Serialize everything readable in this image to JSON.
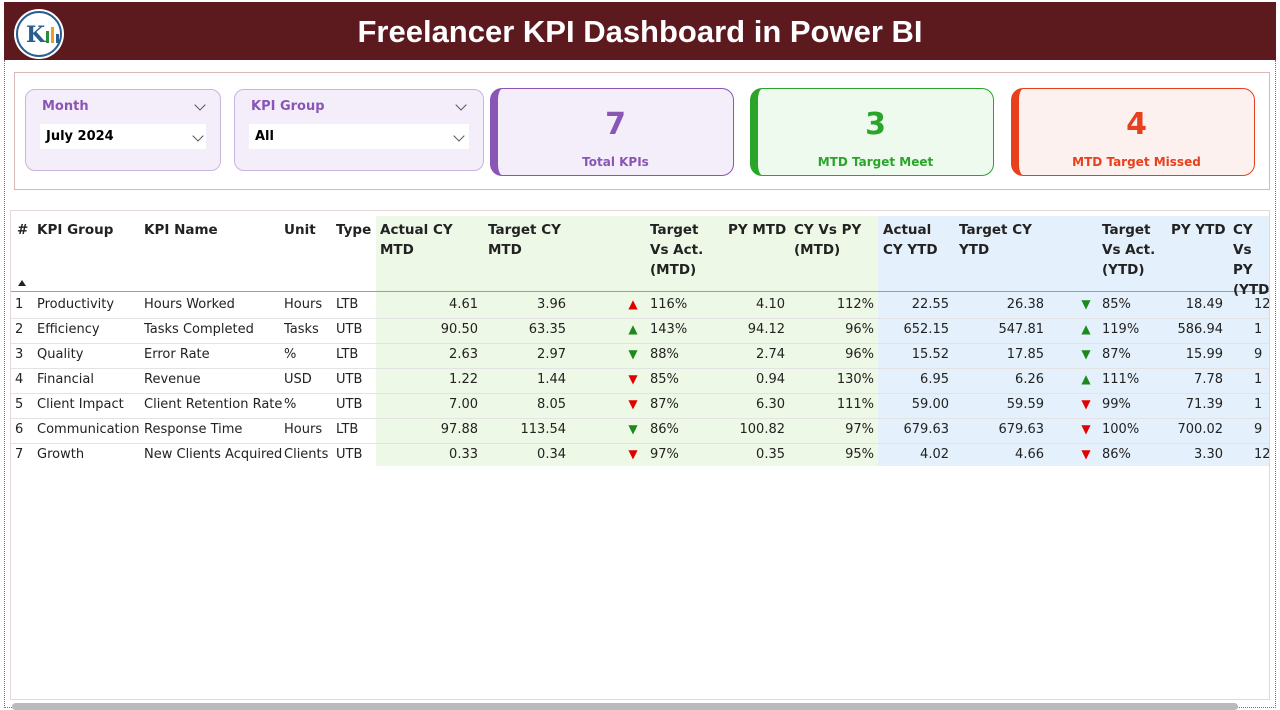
{
  "header": {
    "title": "Freelancer KPI Dashboard in Power BI"
  },
  "slicers": [
    {
      "label": "Month",
      "value": "July 2024"
    },
    {
      "label": "KPI Group",
      "value": "All"
    }
  ],
  "cards": [
    {
      "value": "7",
      "label": "Total KPIs",
      "color": "#8a56b5"
    },
    {
      "value": "3",
      "label": "MTD Target Meet",
      "color": "#2aa52a"
    },
    {
      "value": "4",
      "label": "MTD Target Missed",
      "color": "#e8401c"
    }
  ],
  "table": {
    "columns": [
      "#",
      "KPI Group",
      "KPI Name",
      "Unit",
      "Type",
      "Actual CY MTD",
      "Target CY MTD",
      null,
      "Target Vs Act. (MTD)",
      "PY MTD",
      "CY Vs PY (MTD)",
      "Actual CY YTD",
      "Target CY YTD",
      null,
      "Target Vs Act. (YTD)",
      "PY YTD",
      "CY Vs PY (YTD)"
    ],
    "rows": [
      [
        "1",
        "Productivity",
        "Hours Worked",
        "Hours",
        "LTB",
        "4.61",
        "3.96",
        "▲",
        "116%",
        "4.10",
        "112%",
        "22.55",
        "26.38",
        "▼",
        "85%",
        "18.49",
        "12"
      ],
      [
        "2",
        "Efficiency",
        "Tasks Completed",
        "Tasks",
        "UTB",
        "90.50",
        "63.35",
        "▲",
        "143%",
        "94.12",
        "96%",
        "652.15",
        "547.81",
        "▲",
        "119%",
        "586.94",
        "1"
      ],
      [
        "3",
        "Quality",
        "Error Rate",
        "%",
        "LTB",
        "2.63",
        "2.97",
        "▼",
        "88%",
        "2.74",
        "96%",
        "15.52",
        "17.85",
        "▼",
        "87%",
        "15.99",
        "9"
      ],
      [
        "4",
        "Financial",
        "Revenue",
        "USD",
        "UTB",
        "1.22",
        "1.44",
        "▼",
        "85%",
        "0.94",
        "130%",
        "6.95",
        "6.26",
        "▲",
        "111%",
        "7.78",
        "1"
      ],
      [
        "5",
        "Client Impact",
        "Client Retention Rate",
        "%",
        "UTB",
        "7.00",
        "8.05",
        "▼",
        "87%",
        "6.30",
        "111%",
        "59.00",
        "59.59",
        "▼",
        "99%",
        "71.39",
        "1"
      ],
      [
        "6",
        "Communication",
        "Response Time",
        "Hours",
        "LTB",
        "97.88",
        "113.54",
        "▼",
        "86%",
        "100.82",
        "97%",
        "679.63",
        "679.63",
        "▼",
        "100%",
        "700.02",
        "9"
      ],
      [
        "7",
        "Growth",
        "New Clients Acquired",
        "Clients",
        "UTB",
        "0.33",
        "0.34",
        "▼",
        "97%",
        "0.35",
        "95%",
        "4.02",
        "4.66",
        "▼",
        "86%",
        "3.30",
        "12"
      ]
    ],
    "icon_colors": [
      [
        "#e00000",
        "#1a8a1a"
      ],
      [
        "#1a8a1a",
        "#1a8a1a"
      ],
      [
        "#1a8a1a",
        "#1a8a1a"
      ],
      [
        "#e00000",
        "#1a8a1a"
      ],
      [
        "#e00000",
        "#e00000"
      ],
      [
        "#1a8a1a",
        "#e00000"
      ],
      [
        "#e00000",
        "#e00000"
      ]
    ]
  }
}
